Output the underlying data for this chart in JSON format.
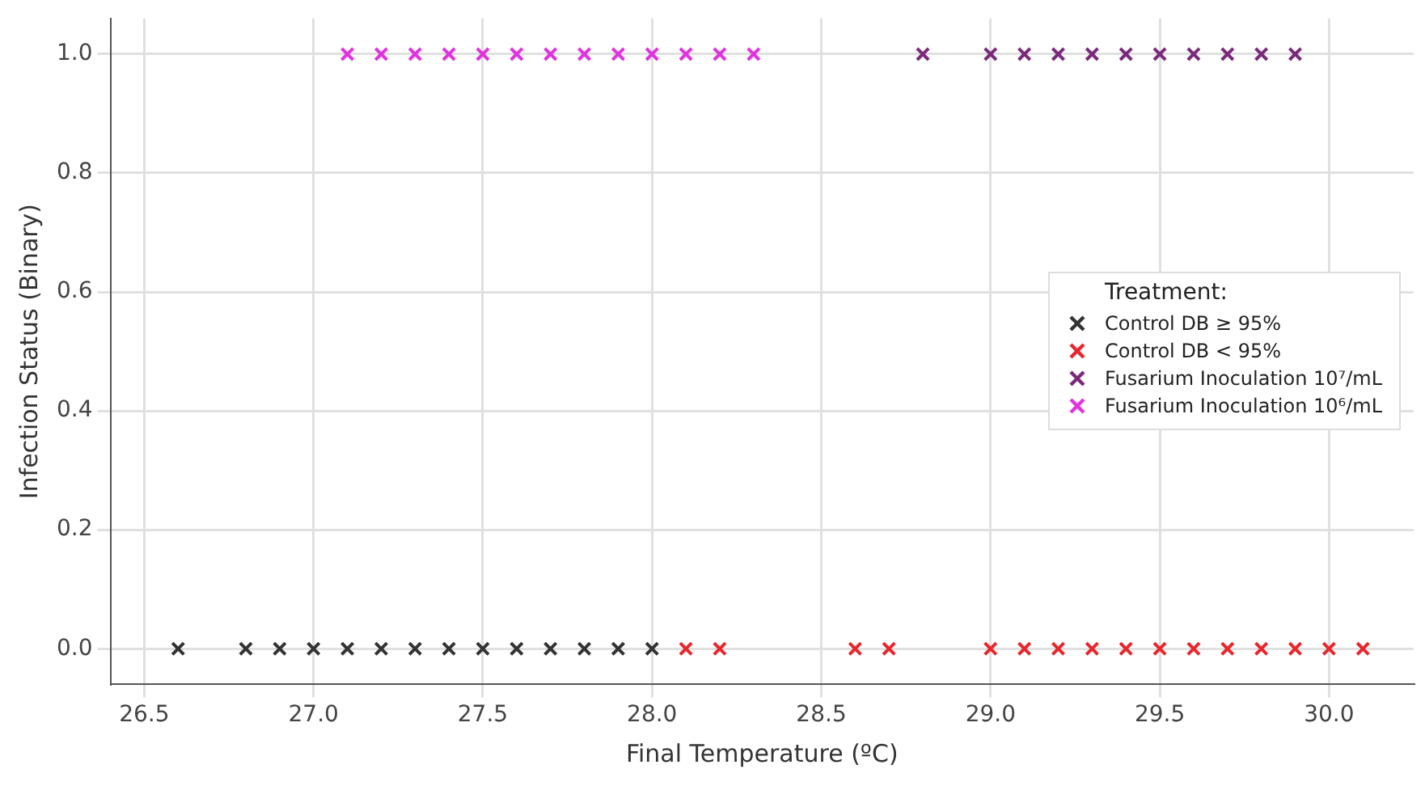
{
  "chart_data": {
    "type": "scatter",
    "xlabel": "Final Temperature (ºC)",
    "ylabel": "Infection Status (Binary)",
    "legend_title": "Treatment:",
    "xlim": [
      26.4,
      30.25
    ],
    "ylim": [
      -0.06,
      1.06
    ],
    "xticks": [
      {
        "value": 26.5,
        "label": "26.5"
      },
      {
        "value": 27,
        "label": "27.0"
      },
      {
        "value": 27.5,
        "label": "27.5"
      },
      {
        "value": 28,
        "label": "28.0"
      },
      {
        "value": 28.5,
        "label": "28.5"
      },
      {
        "value": 29,
        "label": "29.0"
      },
      {
        "value": 29.5,
        "label": "29.5"
      },
      {
        "value": 30,
        "label": "30.0"
      }
    ],
    "yticks": [
      {
        "value": 0,
        "label": "0.0"
      },
      {
        "value": 0.2,
        "label": "0.2"
      },
      {
        "value": 0.4,
        "label": "0.4"
      },
      {
        "value": 0.6,
        "label": "0.6"
      },
      {
        "value": 0.8,
        "label": "0.8"
      },
      {
        "value": 1,
        "label": "1.0"
      }
    ],
    "grid": true,
    "legend": "right",
    "marker": "cross",
    "series": [
      {
        "name": "Control DB ≥ 95%",
        "color": "#333333",
        "x": [
          26.6,
          26.8,
          26.9,
          27.0,
          27.1,
          27.2,
          27.3,
          27.4,
          27.5,
          27.6,
          27.7,
          27.8,
          27.9,
          28.0
        ],
        "values": [
          0,
          0,
          0,
          0,
          0,
          0,
          0,
          0,
          0,
          0,
          0,
          0,
          0,
          0
        ]
      },
      {
        "name": "Control DB < 95%",
        "color": "#e8262b",
        "x": [
          28.1,
          28.2,
          28.6,
          28.7,
          29.0,
          29.1,
          29.2,
          29.3,
          29.4,
          29.5,
          29.6,
          29.7,
          29.8,
          29.9,
          30.0,
          30.1
        ],
        "values": [
          0,
          0,
          0,
          0,
          0,
          0,
          0,
          0,
          0,
          0,
          0,
          0,
          0,
          0,
          0,
          0
        ]
      },
      {
        "name": "Fusarium Inoculation 10⁷/mL",
        "color": "#7b2a7b",
        "x": [
          28.8,
          29.0,
          29.1,
          29.2,
          29.3,
          29.4,
          29.5,
          29.6,
          29.7,
          29.8,
          29.9
        ],
        "values": [
          1,
          1,
          1,
          1,
          1,
          1,
          1,
          1,
          1,
          1,
          1
        ]
      },
      {
        "name": "Fusarium Inoculation 10⁶/mL",
        "color": "#e033e0",
        "x": [
          27.1,
          27.2,
          27.3,
          27.4,
          27.5,
          27.6,
          27.7,
          27.8,
          27.9,
          28.0,
          28.1,
          28.2,
          28.3
        ],
        "values": [
          1,
          1,
          1,
          1,
          1,
          1,
          1,
          1,
          1,
          1,
          1,
          1,
          1
        ]
      }
    ]
  }
}
